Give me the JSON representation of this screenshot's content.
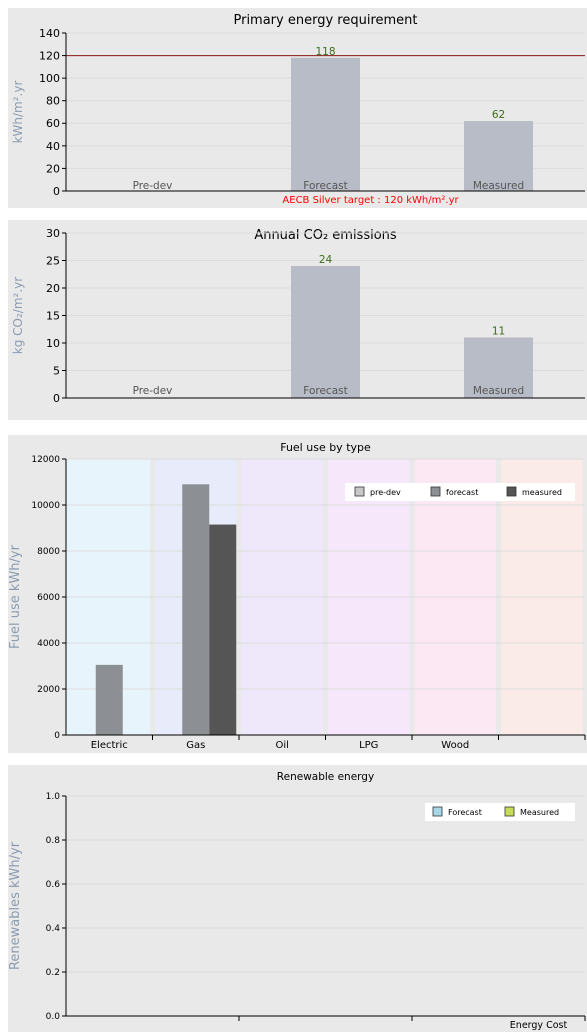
{
  "chart_data": [
    {
      "type": "bar",
      "title": "Primary energy requirement",
      "ylabel": "kWh/m².yr",
      "ylim": [
        0,
        140
      ],
      "yticks": [
        "0",
        "20",
        "40",
        "60",
        "80",
        "100",
        "120",
        "140"
      ],
      "categories": [
        "Pre-dev",
        "Forecast",
        "Measured"
      ],
      "values": [
        null,
        118,
        62
      ],
      "value_labels": [
        "",
        "118",
        "62"
      ],
      "target": {
        "value": 120,
        "label": "AECB Silver target : 120 kWh/m².yr",
        "color": "#ff0000"
      },
      "bar_color": "#b8bcc6",
      "value_label_color": "#3d6b1a",
      "grid": true
    },
    {
      "type": "bar",
      "title": "Annual CO₂ emissions",
      "ylabel": "kg CO₂/m².yr",
      "ylim": [
        0,
        30
      ],
      "yticks": [
        "0",
        "5",
        "10",
        "15",
        "20",
        "25",
        "30"
      ],
      "categories": [
        "Pre-dev",
        "Forecast",
        "Measured"
      ],
      "values": [
        null,
        24,
        11
      ],
      "value_labels": [
        "",
        "24",
        "11"
      ],
      "bar_color": "#b8bcc6",
      "value_label_color": "#3d6b1a",
      "grid": true
    },
    {
      "type": "bar",
      "title": "Fuel use by type",
      "ylabel": "Fuel use  kWh/yr",
      "ylim": [
        0,
        12000
      ],
      "yticks": [
        "0",
        "2000",
        "4000",
        "6000",
        "8000",
        "10000",
        "12000"
      ],
      "categories": [
        "Electric",
        "Gas",
        "Oil",
        "LPG",
        "Wood",
        ""
      ],
      "band_colors": [
        "#e8f4fb",
        "#e8ecfa",
        "#eee8fa",
        "#f6e8fa",
        "#fbe8f2",
        "#fbebe8"
      ],
      "series": [
        {
          "name": "pre-dev",
          "color": "#c8c8c8",
          "values": [
            null,
            null,
            null,
            null,
            null,
            null
          ]
        },
        {
          "name": "forecast",
          "color": "#8c8f94",
          "values": [
            3050,
            10900,
            null,
            null,
            null,
            null
          ]
        },
        {
          "name": "measured",
          "color": "#555555",
          "values": [
            null,
            9150,
            null,
            null,
            null,
            null
          ]
        }
      ],
      "legend": "top-right",
      "grid": true
    },
    {
      "type": "bar",
      "title": "Renewable energy",
      "ylabel": "Renewables  kWh/yr",
      "ylim": [
        0,
        1.0
      ],
      "yticks": [
        "0.0",
        "0.2",
        "0.4",
        "0.6",
        "0.8",
        "1.0"
      ],
      "categories": [
        "",
        "",
        "Energy Cost"
      ],
      "series": [
        {
          "name": "Forecast",
          "color": "#a8d8e8",
          "values": [
            null,
            null,
            null
          ]
        },
        {
          "name": "Measured",
          "color": "#c8dc5c",
          "values": [
            null,
            null,
            null
          ]
        }
      ],
      "legend": "top-right",
      "grid": true
    }
  ]
}
